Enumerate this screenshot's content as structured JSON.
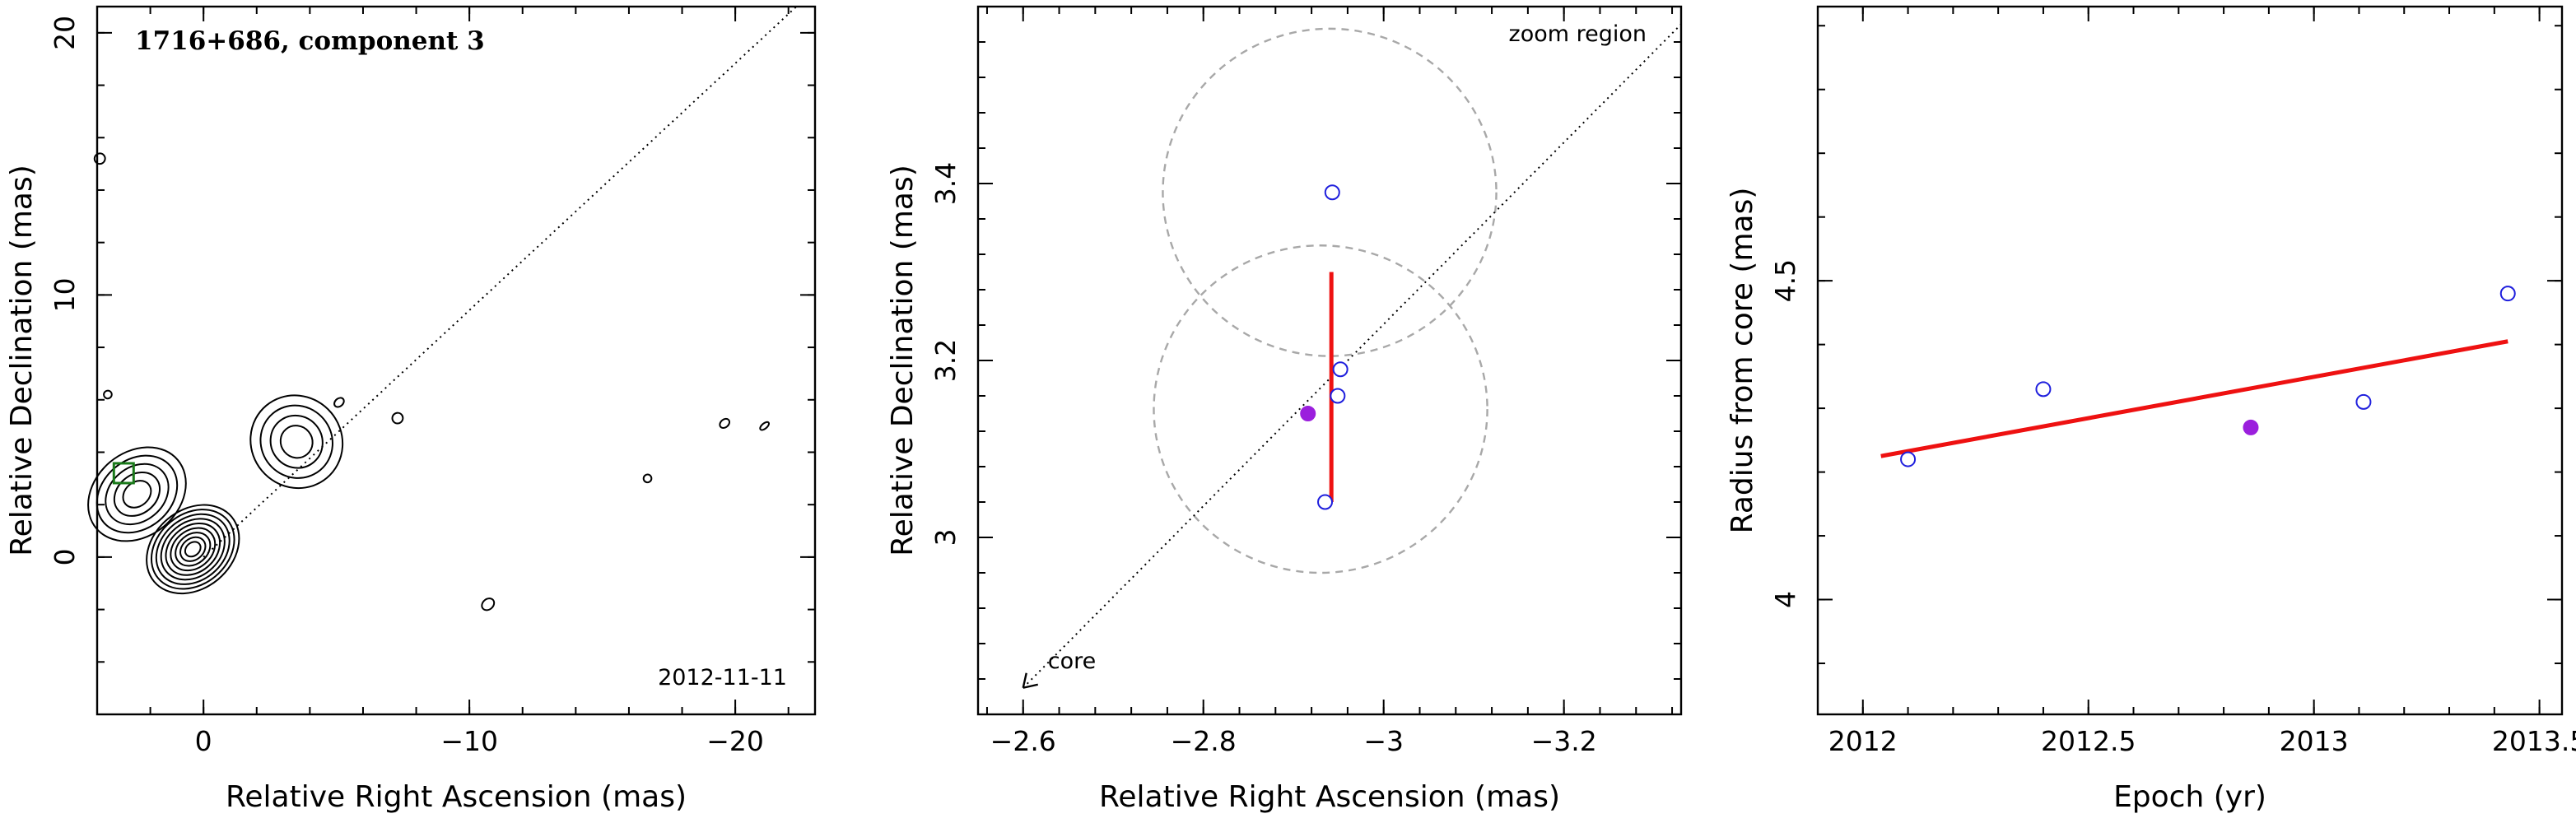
{
  "chart_data": [
    {
      "type": "contour",
      "title": "1716+686, component 3",
      "xlabel": "Relative Right Ascension (mas)",
      "ylabel": "Relative Declination (mas)",
      "xlim": [
        4,
        -23
      ],
      "ylim": [
        -6,
        21
      ],
      "x_ticks": [
        0,
        -10,
        -20
      ],
      "x_ticklabels": [
        "0",
        "−10",
        "−20"
      ],
      "y_ticks": [
        0,
        10,
        20
      ],
      "y_ticklabels": [
        "0",
        "10",
        "20"
      ],
      "annotations": [
        "2012-11-11"
      ],
      "core_position": [
        0,
        0
      ],
      "component_marker": {
        "x": 3,
        "y": 3.2,
        "color": "#1a7a1a"
      },
      "jet_direction_line": {
        "from": [
          0,
          0
        ],
        "to": [
          -22.3,
          21
        ],
        "style": "dotted"
      },
      "contour_blobs": [
        {
          "x": 0.4,
          "y": 0.3,
          "rx": 1.9,
          "ry": 1.5,
          "levels": 9
        },
        {
          "x": 2.5,
          "y": 2.4,
          "rx": 2.0,
          "ry": 1.6,
          "levels": 5
        },
        {
          "x": -3.5,
          "y": 4.4,
          "rx": 1.7,
          "ry": 1.8,
          "levels": 4
        },
        {
          "x": 3.9,
          "y": 15.2,
          "rx": 0.2,
          "ry": 0.2,
          "levels": 1
        },
        {
          "x": -7.3,
          "y": 5.3,
          "rx": 0.2,
          "ry": 0.2,
          "levels": 1
        },
        {
          "x": -10.7,
          "y": -1.8,
          "rx": 0.25,
          "ry": 0.2,
          "levels": 1
        },
        {
          "x": -16.7,
          "y": 3.0,
          "rx": 0.15,
          "ry": 0.15,
          "levels": 1
        },
        {
          "x": -19.6,
          "y": 5.1,
          "rx": 0.2,
          "ry": 0.15,
          "levels": 1
        },
        {
          "x": -21.1,
          "y": 5.0,
          "rx": 0.2,
          "ry": 0.1,
          "levels": 1
        },
        {
          "x": 3.6,
          "y": 6.2,
          "rx": 0.15,
          "ry": 0.15,
          "levels": 1
        },
        {
          "x": -5.1,
          "y": 5.9,
          "rx": 0.2,
          "ry": 0.15,
          "levels": 1
        }
      ]
    },
    {
      "type": "scatter",
      "title": "",
      "xlabel": "Relative Right Ascension (mas)",
      "ylabel": "Relative Declination (mas)",
      "xlim": [
        -2.55,
        -3.33
      ],
      "ylim": [
        2.8,
        3.6
      ],
      "x_ticks": [
        -2.6,
        -2.8,
        -3.0,
        -3.2
      ],
      "x_ticklabels": [
        "−2.6",
        "−2.8",
        "−3",
        "−3.2"
      ],
      "y_ticks": [
        3.0,
        3.2,
        3.4
      ],
      "y_ticklabels": [
        "3",
        "3.2",
        "3.4"
      ],
      "annotations": [
        "zoom region",
        "core"
      ],
      "series": [
        {
          "marker": "open-circle",
          "color": "#1f1fdd",
          "x": [
            -2.935,
            -2.943,
            -2.952,
            -2.949
          ],
          "y": [
            3.04,
            3.39,
            3.19,
            3.16
          ]
        },
        {
          "marker": "filled-circle",
          "color": "#9b1fdd",
          "x": [
            -2.916
          ],
          "y": [
            3.14
          ]
        }
      ],
      "error_bar": {
        "x": -2.942,
        "y_from": 3.04,
        "y_to": 3.3,
        "color": "#ee1111"
      },
      "circles": [
        {
          "x": -2.94,
          "y": 3.39,
          "r": 0.185
        },
        {
          "x": -2.93,
          "y": 3.145,
          "r": 0.185
        }
      ],
      "jet_direction_line": {
        "from": [
          -2.6,
          2.83
        ],
        "to": [
          -3.33,
          3.58
        ],
        "style": "dotted"
      }
    },
    {
      "type": "scatter",
      "title": "",
      "xlabel": "Epoch (yr)",
      "ylabel": "Radius from core (mas)",
      "xlim": [
        2011.9,
        2013.55
      ],
      "ylim": [
        3.82,
        4.93
      ],
      "x_ticks": [
        2012,
        2012.5,
        2013,
        2013.5
      ],
      "x_ticklabels": [
        "2012",
        "2012.5",
        "2013",
        "2013.5"
      ],
      "y_ticks": [
        4.0,
        4.5
      ],
      "y_ticklabels": [
        "4",
        "4.5"
      ],
      "series": [
        {
          "marker": "open-circle",
          "color": "#1f1fdd",
          "x": [
            2012.1,
            2012.4,
            2013.11,
            2013.43
          ],
          "y": [
            4.22,
            4.33,
            4.31,
            4.48
          ]
        },
        {
          "marker": "filled-circle",
          "color": "#9b1fdd",
          "x": [
            2012.86
          ],
          "y": [
            4.27
          ]
        }
      ],
      "fit_line": {
        "x": [
          2012.04,
          2013.43
        ],
        "y": [
          4.225,
          4.405
        ],
        "color": "#ee1111"
      }
    }
  ]
}
